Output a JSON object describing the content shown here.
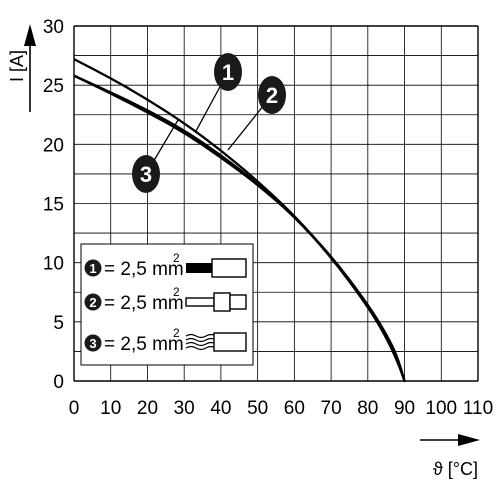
{
  "chart_data": {
    "type": "line",
    "xlabel": "ϑ [°C]",
    "ylabel": "I [A]",
    "xlim": [
      0,
      110
    ],
    "ylim": [
      0,
      30
    ],
    "x_ticks": [
      "0",
      "10",
      "20",
      "30",
      "40",
      "50",
      "60",
      "70",
      "80",
      "90",
      "100",
      "110"
    ],
    "y_ticks": [
      "0",
      "5",
      "10",
      "15",
      "20",
      "25",
      "30"
    ],
    "grid": true,
    "legend_placement": "lower-left",
    "series": [
      {
        "marker": "1",
        "legend_label": "= 2,5 mm",
        "legend_sup": "2",
        "conductor": "solid-conductor-with-ferrule",
        "x": [
          0,
          10,
          20,
          30,
          40,
          50,
          60,
          70,
          80,
          85,
          88,
          90
        ],
        "y": [
          27.2,
          25.6,
          23.8,
          21.8,
          19.5,
          16.9,
          14.0,
          10.5,
          6.3,
          3.7,
          1.7,
          0
        ]
      },
      {
        "marker": "2",
        "legend_label": "= 2,5 mm",
        "legend_sup": "2",
        "conductor": "stranded-conductor-with-ferrule",
        "x": [
          0,
          10,
          20,
          30,
          40,
          50,
          60,
          70,
          80,
          85,
          88,
          90
        ],
        "y": [
          25.8,
          24.4,
          22.9,
          21.2,
          19.1,
          16.7,
          13.9,
          10.5,
          6.3,
          3.8,
          1.8,
          0
        ]
      },
      {
        "marker": "3",
        "legend_label": "= 2,5 mm",
        "legend_sup": "2",
        "conductor": "flexible-stranded-conductor",
        "x": [
          0,
          10,
          20,
          30,
          40,
          50,
          60,
          70,
          80,
          85,
          88,
          90
        ],
        "y": [
          25.8,
          24.3,
          22.7,
          21.0,
          18.9,
          16.6,
          13.9,
          10.6,
          6.5,
          4.0,
          2.1,
          0
        ]
      }
    ],
    "colors": {
      "line": "#000000",
      "grid": "#000000",
      "marker": "#1a1a1a"
    }
  }
}
